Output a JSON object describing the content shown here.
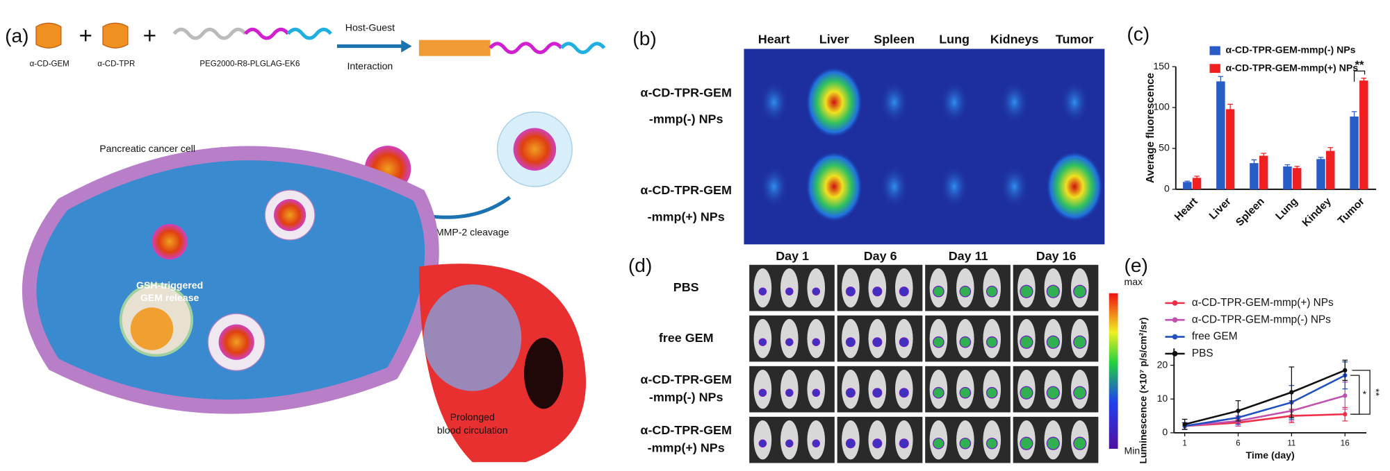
{
  "panel_a": {
    "label": "(a)",
    "components": [
      "α-CD-GEM",
      "α-CD-TPR",
      "PEG2000-R8-PLGLAG-EK6"
    ],
    "step": [
      "Host-Guest",
      "Interaction"
    ],
    "cell": "Pancreatic cancer cell",
    "cleavage": "MMP-2 cleavage",
    "release": [
      "GSH-triggered",
      "GEM release"
    ],
    "circulation": [
      "Prolonged",
      "blood circulation"
    ]
  },
  "panel_b": {
    "label": "(b)",
    "organs": [
      "Heart",
      "Liver",
      "Spleen",
      "Lung",
      "Kidneys",
      "Tumor"
    ],
    "groups": [
      [
        "α-CD-TPR-GEM",
        "-mmp(-) NPs"
      ],
      [
        "α-CD-TPR-GEM",
        "-mmp(+) NPs"
      ]
    ]
  },
  "panel_d": {
    "label": "(d)",
    "days": [
      "Day 1",
      "Day 6",
      "Day 11",
      "Day 16"
    ],
    "groups": [
      [
        "PBS"
      ],
      [
        "free GEM"
      ],
      [
        "α-CD-TPR-GEM",
        "-mmp(-) NPs"
      ],
      [
        "α-CD-TPR-GEM",
        "-mmp(+) NPs"
      ]
    ],
    "scale": [
      "max",
      "Min"
    ]
  },
  "chart_data": [
    {
      "panel_label": "(c)",
      "type": "bar",
      "ylabel": "Average fluorescence",
      "categories": [
        "Heart",
        "Liver",
        "Spleen",
        "Lung",
        "Kindey",
        "Tumor"
      ],
      "series": [
        {
          "name": "α-CD-TPR-GEM-mmp(-) NPs",
          "color": "#2a5cc8",
          "values": [
            9,
            132,
            32,
            28,
            37,
            89
          ],
          "errors": [
            1,
            6,
            4,
            2,
            2,
            6
          ]
        },
        {
          "name": "α-CD-TPR-GEM-mmp(+) NPs",
          "color": "#f02020",
          "values": [
            14,
            98,
            41,
            26,
            47,
            133
          ],
          "errors": [
            2,
            6,
            3,
            2,
            4,
            3
          ]
        }
      ],
      "ylim": [
        0,
        150
      ],
      "yticks": [
        0,
        50,
        100,
        150
      ],
      "annotation": "**"
    },
    {
      "panel_label": "(e)",
      "type": "line",
      "ylabel": "Luminescence (×10⁷ p/s/cm²/sr)",
      "xlabel": "Time (day)",
      "x": [
        1,
        6,
        11,
        16
      ],
      "xlim": [
        0,
        18
      ],
      "xticks": [
        1,
        6,
        11,
        16
      ],
      "ylim": [
        0,
        25
      ],
      "yticks": [
        0,
        10,
        20
      ],
      "series": [
        {
          "name": "α-CD-TPR-GEM-mmp(+) NPs",
          "color": "#f0304a",
          "values": [
            2,
            3,
            5,
            5.5
          ],
          "errors": [
            1,
            1,
            2,
            2
          ]
        },
        {
          "name": "α-CD-TPR-GEM-mmp(-) NPs",
          "color": "#c050b0",
          "values": [
            2,
            3.5,
            6.5,
            11
          ],
          "errors": [
            1,
            1.5,
            3,
            4
          ]
        },
        {
          "name": "free GEM",
          "color": "#2050c0",
          "values": [
            2,
            4.5,
            9,
            17
          ],
          "errors": [
            1,
            2,
            5,
            4
          ]
        },
        {
          "name": "PBS",
          "color": "#111111",
          "values": [
            2.5,
            6.5,
            12,
            18.5
          ],
          "errors": [
            1.5,
            3,
            7.5,
            3
          ]
        }
      ],
      "annotations": [
        "**",
        "*"
      ]
    }
  ]
}
